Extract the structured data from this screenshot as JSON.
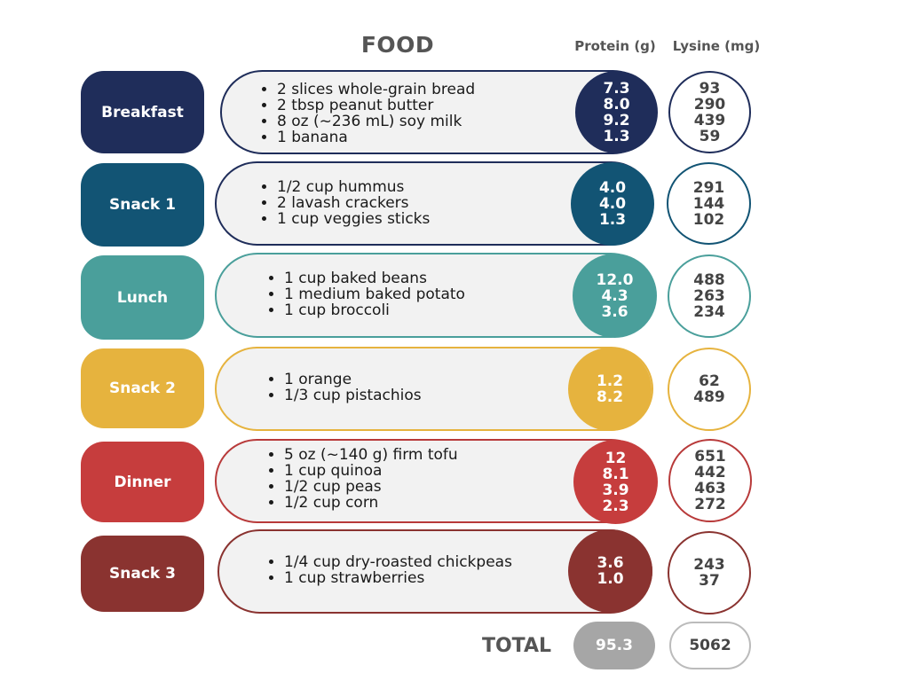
{
  "headers": {
    "food": "FOOD",
    "protein": "Protein (g)",
    "lysine": "Lysine (mg)"
  },
  "colors": {
    "breakfast": "#1f2d5a",
    "snack1": "#125474",
    "lunch": "#4a9f9b",
    "snack2": "#e6b33e",
    "dinner": "#c63d3d",
    "snack3": "#8a3330",
    "total": "#a6a6a6"
  },
  "meals": [
    {
      "label": "Breakfast",
      "items": [
        "2 slices whole-grain bread",
        "2 tbsp peanut butter",
        "8 oz (~236 mL) soy milk",
        "1 banana"
      ],
      "protein": [
        "7.3",
        "8.0",
        "9.2",
        "1.3"
      ],
      "lysine": [
        "93",
        "290",
        "439",
        "59"
      ]
    },
    {
      "label": "Snack 1",
      "items": [
        "1/2 cup hummus",
        "2 lavash crackers",
        "1 cup veggies sticks"
      ],
      "protein": [
        "4.0",
        "4.0",
        "1.3"
      ],
      "lysine": [
        "291",
        "144",
        "102"
      ]
    },
    {
      "label": "Lunch",
      "items": [
        "1 cup baked beans",
        "1 medium baked potato",
        "1 cup broccoli"
      ],
      "protein": [
        "12.0",
        "4.3",
        "3.6"
      ],
      "lysine": [
        "488",
        "263",
        "234"
      ]
    },
    {
      "label": "Snack 2",
      "items": [
        "1 orange",
        "1/3 cup pistachios"
      ],
      "protein": [
        "1.2",
        "8.2"
      ],
      "lysine": [
        "62",
        "489"
      ]
    },
    {
      "label": "Dinner",
      "items": [
        "5 oz (~140 g) firm tofu",
        "1 cup quinoa",
        "1/2 cup peas",
        "1/2 cup corn"
      ],
      "protein": [
        "12",
        "8.1",
        "3.9",
        "2.3"
      ],
      "lysine": [
        "651",
        "442",
        "463",
        "272"
      ]
    },
    {
      "label": "Snack 3",
      "items": [
        "1/4 cup dry-roasted chickpeas",
        "1 cup strawberries"
      ],
      "protein": [
        "3.6",
        "1.0"
      ],
      "lysine": [
        "243",
        "37"
      ]
    }
  ],
  "total": {
    "label": "TOTAL",
    "protein": "95.3",
    "lysine": "5062"
  }
}
